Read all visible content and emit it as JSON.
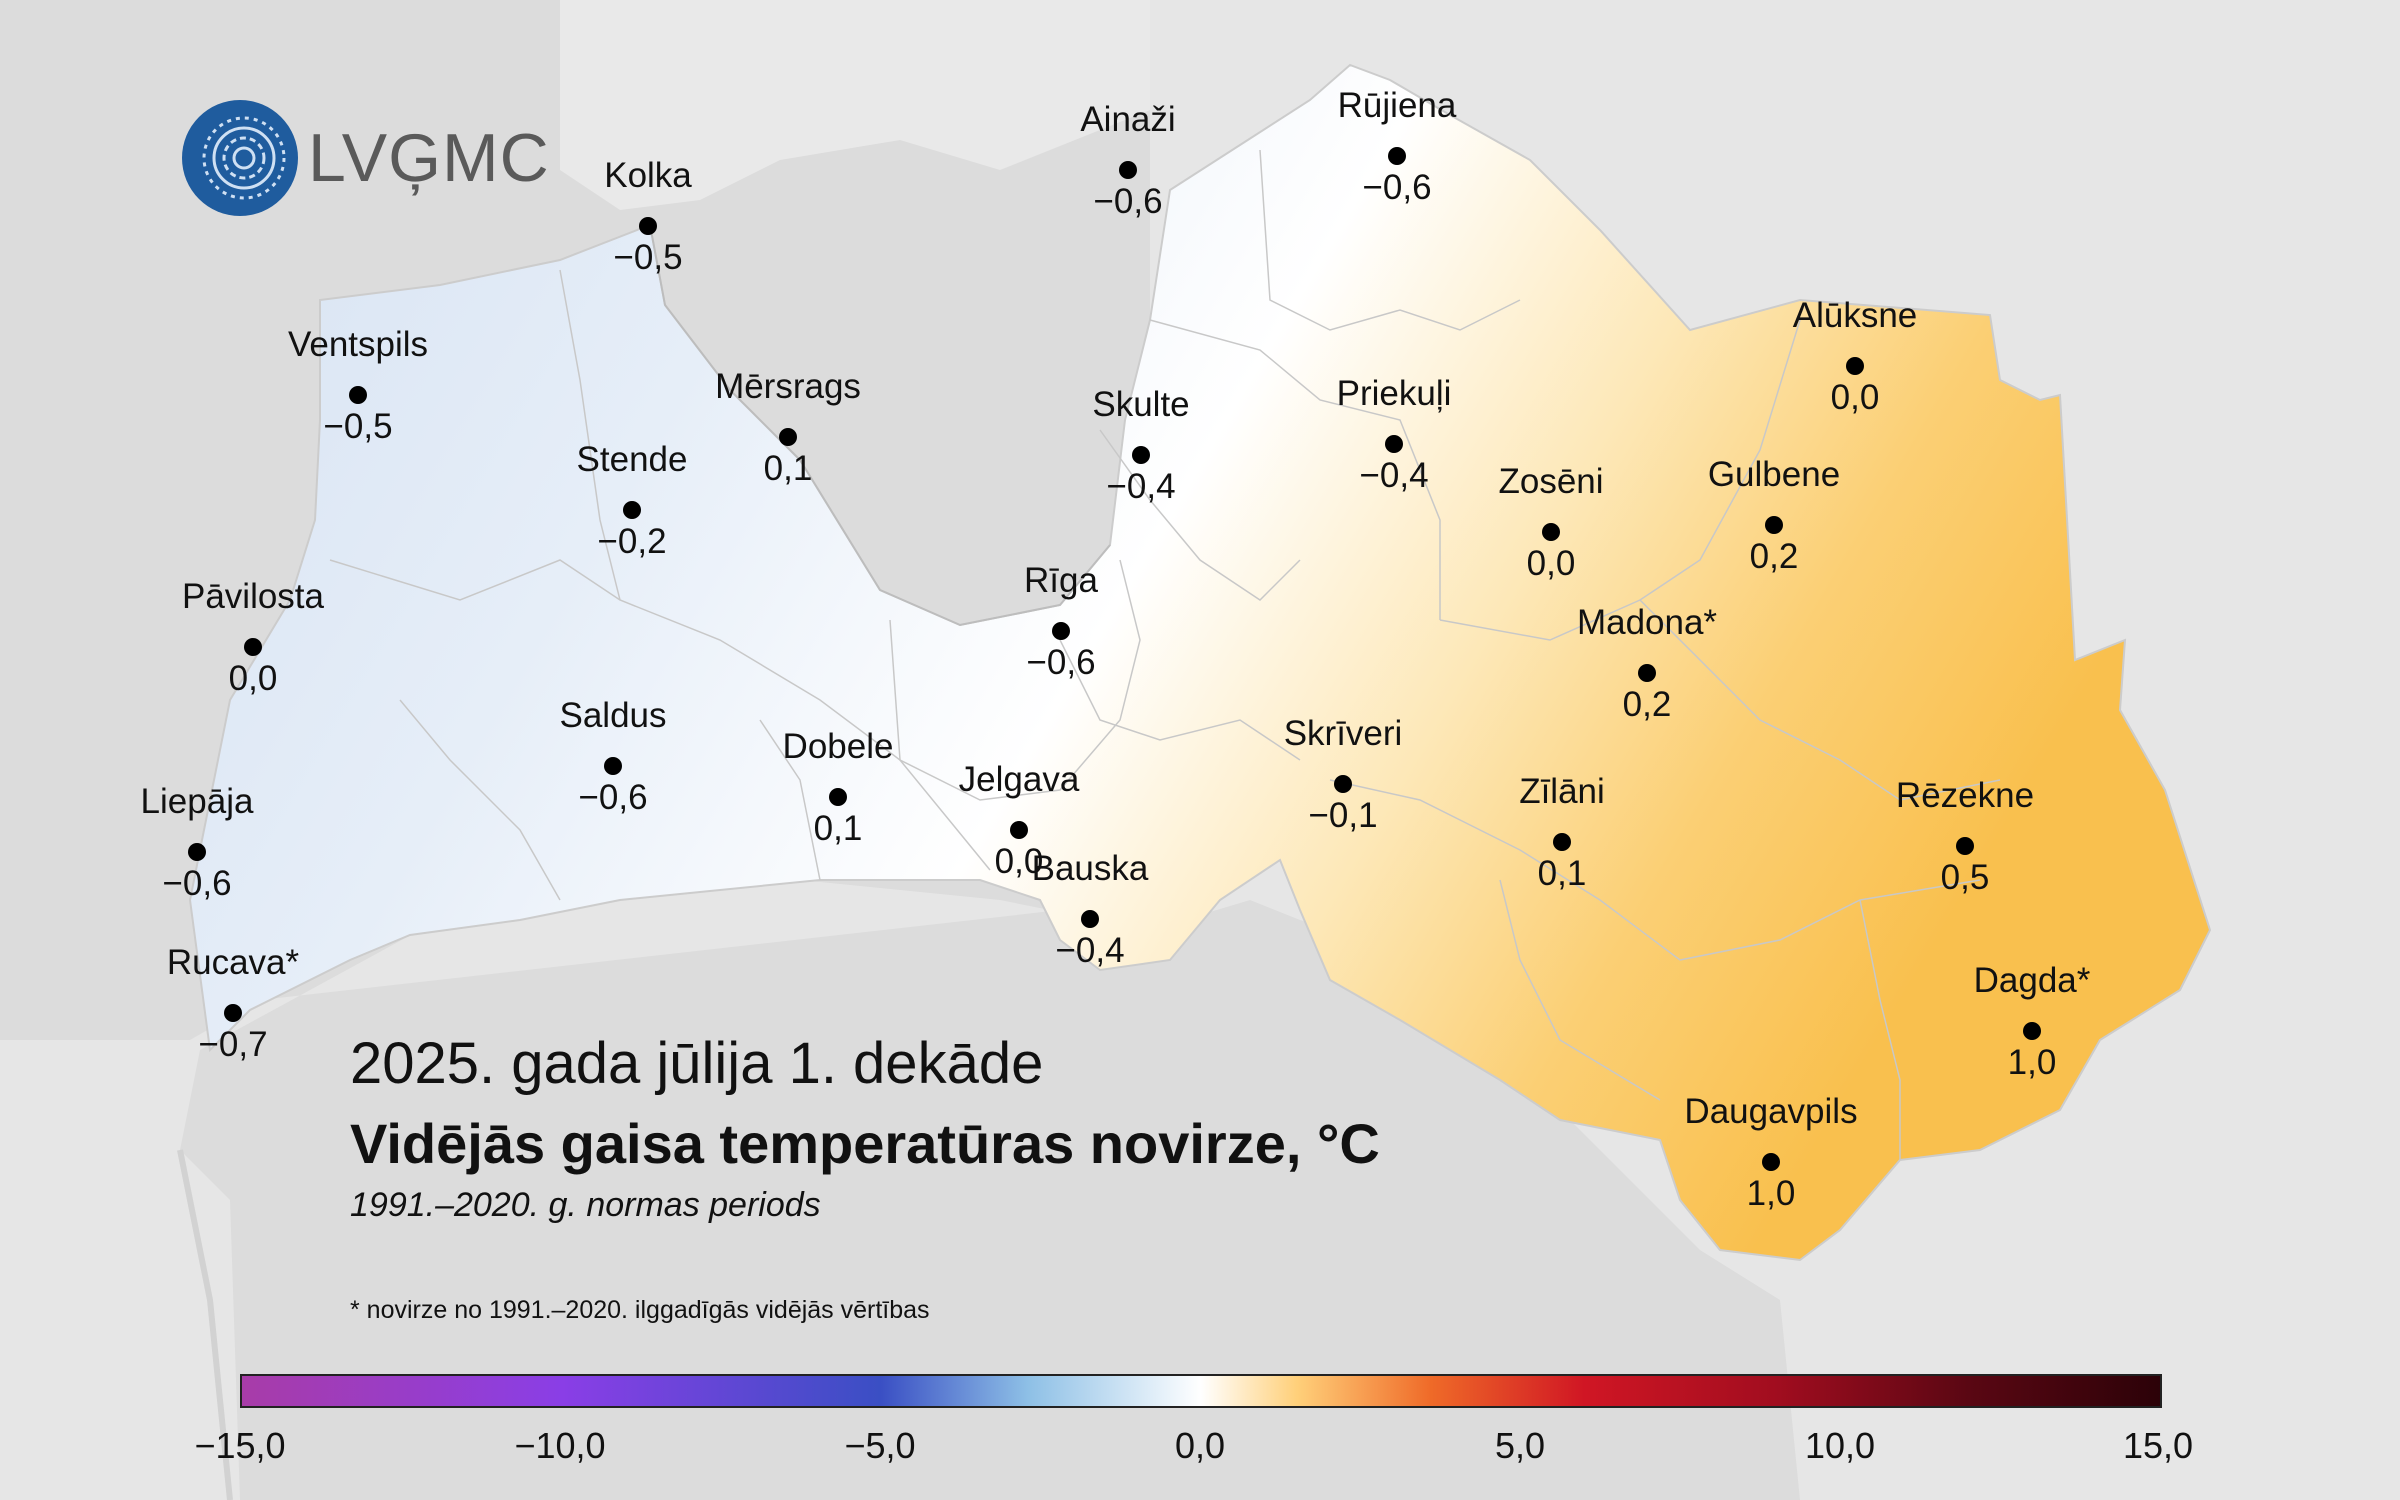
{
  "logo": {
    "text": "LVĢMC",
    "icon": "lvgmc-logo-icon"
  },
  "title": {
    "line1": "2025. gada jūlija 1. dekāde",
    "line2": "Vidējās gaisa temperatūras novirze, °C",
    "line3": "1991.–2020. g. normas periods",
    "footnote": "* novirze no 1991.–2020. ilggadīgās vidējās vērtības"
  },
  "stations": [
    {
      "name": "Kolka",
      "value": "−0,5"
    },
    {
      "name": "Ainaži",
      "value": "−0,6"
    },
    {
      "name": "Rūjiena",
      "value": "−0,6"
    },
    {
      "name": "Ventspils",
      "value": "−0,5"
    },
    {
      "name": "Mērsrags",
      "value": "0,1"
    },
    {
      "name": "Skulte",
      "value": "−0,4"
    },
    {
      "name": "Priekuļi",
      "value": "−0,4"
    },
    {
      "name": "Alūksne",
      "value": "0,0"
    },
    {
      "name": "Stende",
      "value": "−0,2"
    },
    {
      "name": "Zosēni",
      "value": "0,0"
    },
    {
      "name": "Gulbene",
      "value": "0,2"
    },
    {
      "name": "Pāvilosta",
      "value": "0,0"
    },
    {
      "name": "Rīga",
      "value": "−0,6"
    },
    {
      "name": "Madona*",
      "value": "0,2"
    },
    {
      "name": "Saldus",
      "value": "−0,6"
    },
    {
      "name": "Dobele",
      "value": "0,1"
    },
    {
      "name": "Jelgava",
      "value": "0,0"
    },
    {
      "name": "Skrīveri",
      "value": "−0,1"
    },
    {
      "name": "Zīlāni",
      "value": "0,1"
    },
    {
      "name": "Rēzekne",
      "value": "0,5"
    },
    {
      "name": "Liepāja",
      "value": "−0,6"
    },
    {
      "name": "Bauska",
      "value": "−0,4"
    },
    {
      "name": "Rucava*",
      "value": "−0,7"
    },
    {
      "name": "Dagda*",
      "value": "1,0"
    },
    {
      "name": "Daugavpils",
      "value": "1,0"
    }
  ],
  "colorbar": {
    "ticks": [
      "−15,0",
      "−10,0",
      "−5,0",
      "0,0",
      "5,0",
      "10,0",
      "15,0"
    ]
  },
  "colors": {
    "sea": "#dcdcdc",
    "land_outside": "#e6e6e6",
    "cool": "#dfe8f5",
    "warm": "#fbc45a"
  }
}
